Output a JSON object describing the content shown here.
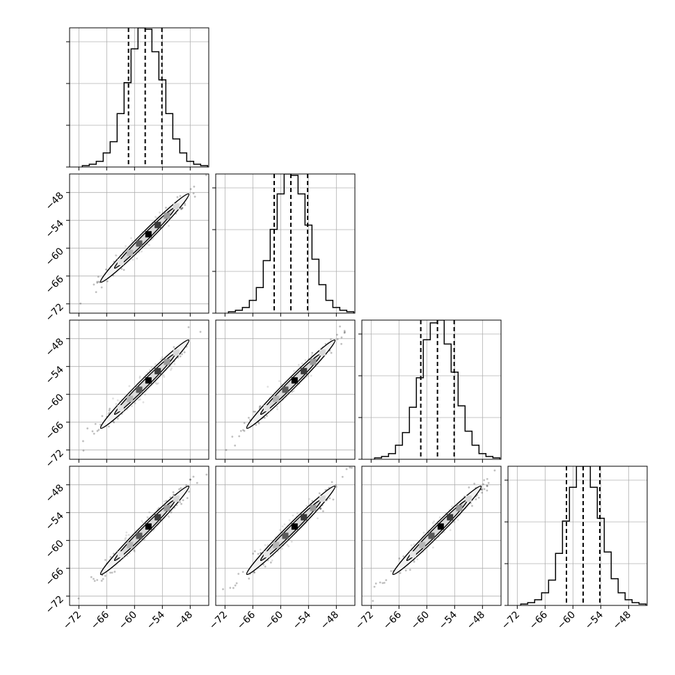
{
  "chart_data": {
    "type": "corner",
    "n_params": 4,
    "grid": true,
    "axis_range": [
      -74,
      -44
    ],
    "ticks": [
      -72,
      -66,
      -60,
      -54,
      -48
    ],
    "tick_labels": [
      "−72",
      "−66",
      "−60",
      "−54",
      "−48"
    ],
    "diagonal": {
      "type": "histogram",
      "bins": [
        -70.5,
        -69.0,
        -67.5,
        -66.0,
        -64.5,
        -63.0,
        -61.5,
        -60.0,
        -58.5,
        -57.0,
        -55.5,
        -54.0,
        -52.5,
        -51.0,
        -49.5,
        -48.0,
        -46.5,
        -45.0
      ],
      "histograms": [
        {
          "name": "",
          "counts": [
            1,
            2,
            4,
            10,
            18,
            38,
            60,
            84,
            99,
            98,
            82,
            62,
            38,
            20,
            10,
            4,
            2,
            1
          ],
          "quantiles": [
            -61.3,
            -57.7,
            -54.1
          ]
        },
        {
          "name": "",
          "counts": [
            1,
            2,
            4,
            9,
            18,
            37,
            59,
            84,
            98,
            97,
            84,
            62,
            38,
            20,
            9,
            4,
            2,
            1
          ],
          "quantiles": [
            -61.4,
            -57.8,
            -54.2
          ]
        },
        {
          "name": "",
          "counts": [
            1,
            2,
            4,
            10,
            19,
            37,
            58,
            85,
            97,
            99,
            82,
            62,
            38,
            20,
            10,
            4,
            2,
            1
          ],
          "quantiles": [
            -61.3,
            -57.7,
            -54.1
          ]
        },
        {
          "name": "",
          "counts": [
            1,
            2,
            4,
            9,
            18,
            37,
            60,
            84,
            99,
            99,
            84,
            62,
            38,
            19,
            9,
            4,
            2,
            1
          ],
          "quantiles": [
            -61.4,
            -57.8,
            -54.2
          ]
        }
      ]
    },
    "off_diagonal": {
      "type": "2d-density",
      "correlation": "strong positive",
      "mean": [
        -57.8,
        -57.8
      ],
      "spread_along": 4.2,
      "contour_levels": 2
    }
  }
}
